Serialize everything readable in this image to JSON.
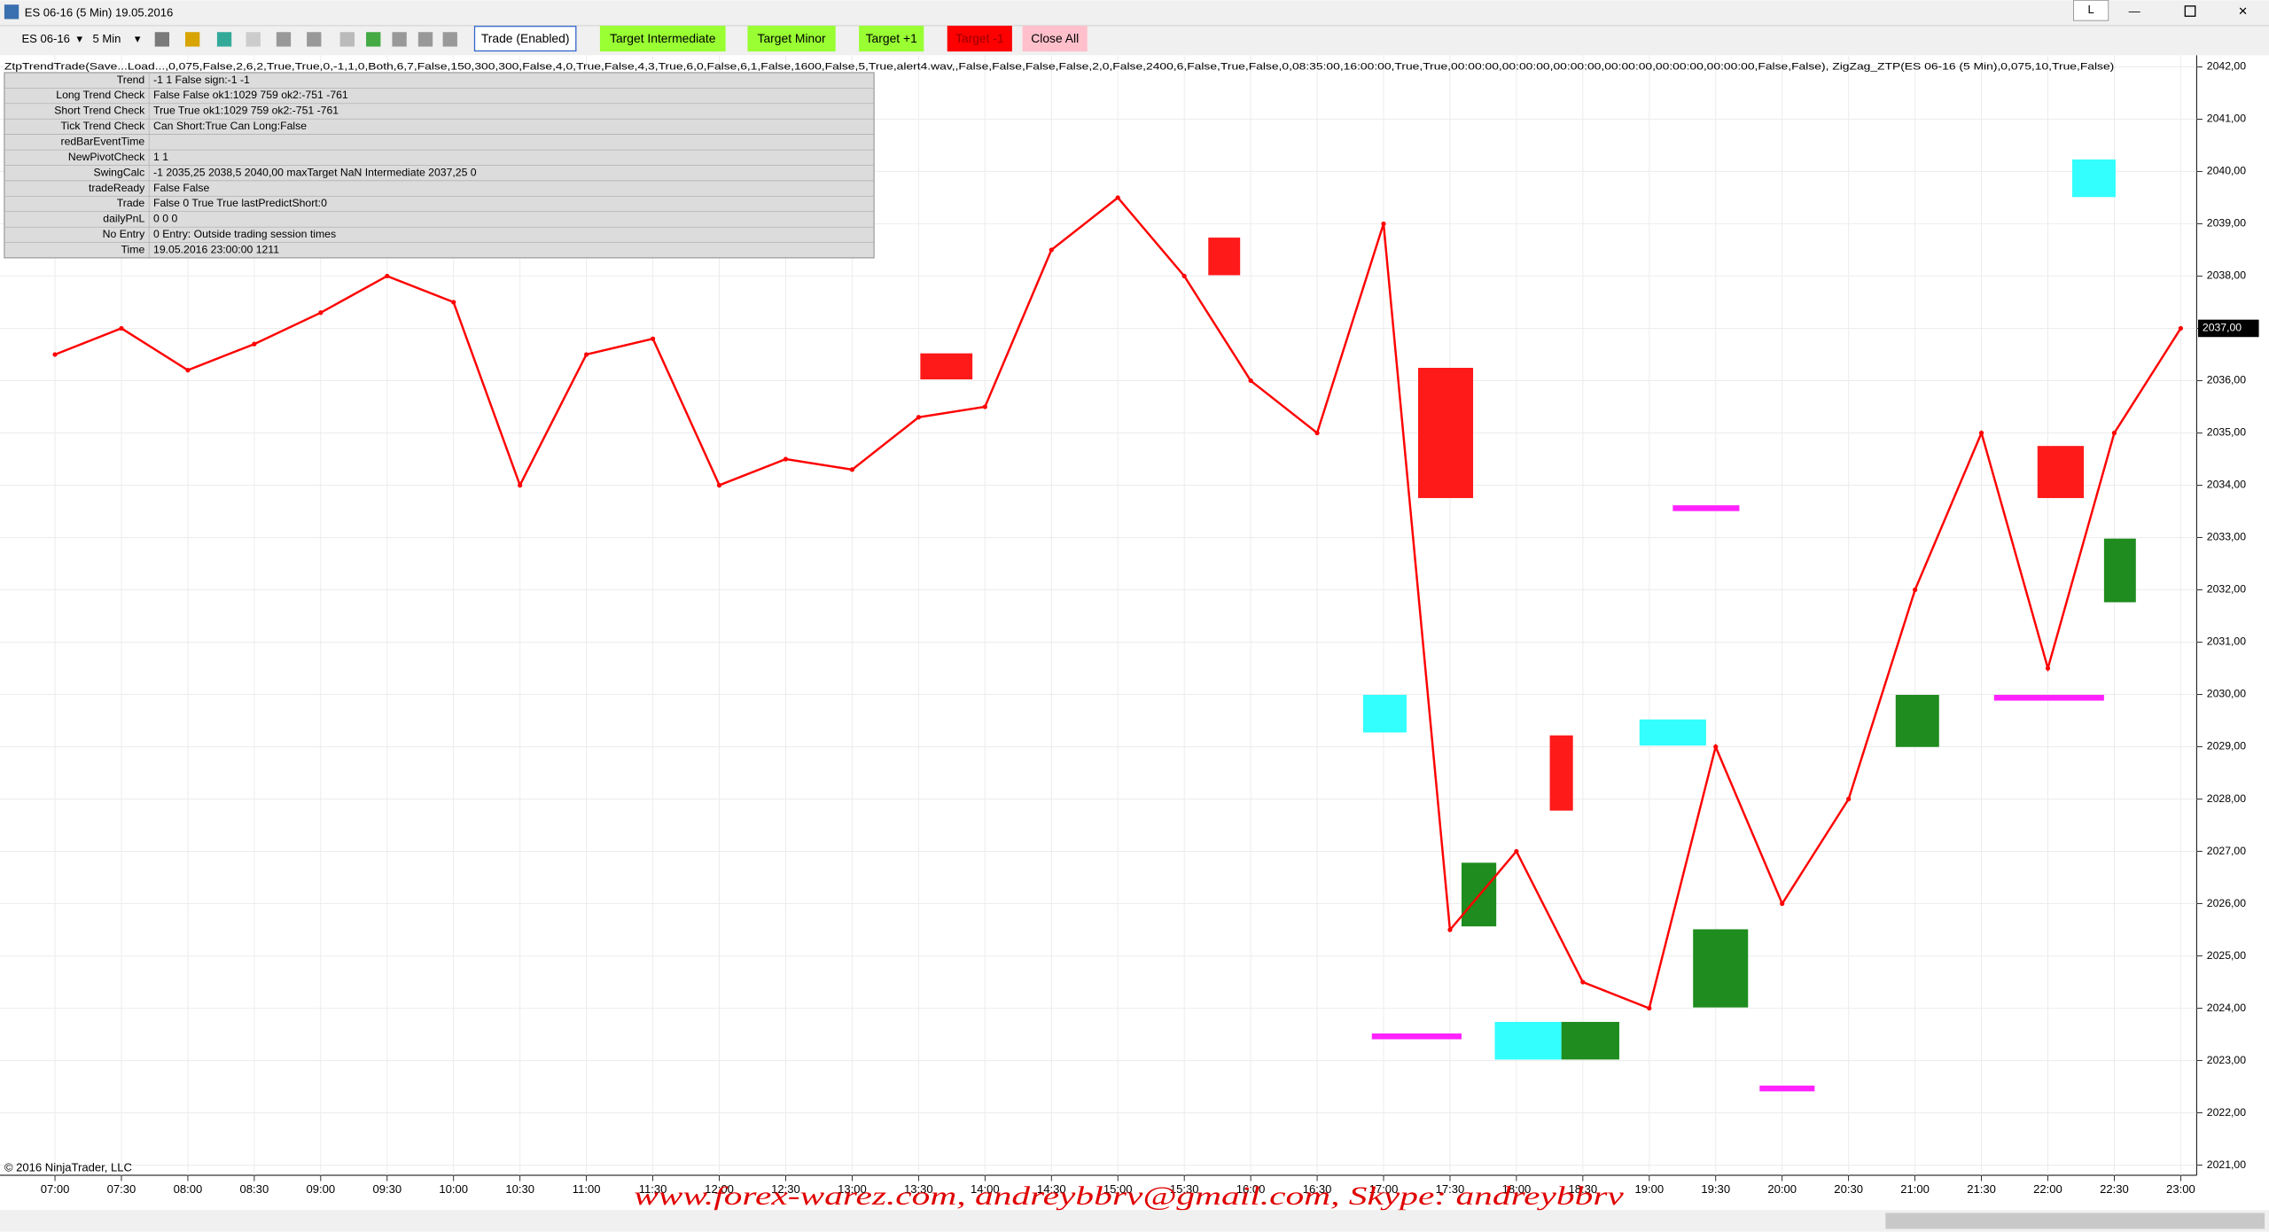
{
  "window": {
    "title": "ES 06-16 (5 Min)  19.05.2016",
    "minimize_label": "L"
  },
  "toolbar": {
    "instrument": "ES 06-16",
    "interval": "5 Min",
    "buttons": [
      "Trade (Enabled)",
      "Target Intermediate",
      "Target Minor",
      "Target +1",
      "Target -1",
      "Close All"
    ]
  },
  "indicator_label": "ZtpTrendTrade(Save...Load...,0,075,False,2,6,2,True,True,0,-1,1,0,Both,6,7,False,150,300,300,False,4,0,True,False,4,3,True,6,0,False,6,1,False,1600,False,5,True,alert4.wav,,False,False,False,False,2,0,False,2400,6,False,True,False,0,08:35:00,16:00:00,True,True,00:00:00,00:00:00,00:00:00,00:00:00,00:00:00,00:00:00,False,False), ZigZag_ZTP(ES 06-16 (5 Min),0,075,10,True,False)",
  "info_table": [
    {
      "label": "Trend",
      "value": "-1 1 False sign:-1 -1"
    },
    {
      "label": "Long Trend Check",
      "value": "False False ok1:1029 759 ok2:-751 -761"
    },
    {
      "label": "Short Trend Check",
      "value": "True True ok1:1029 759 ok2:-751 -761"
    },
    {
      "label": "Tick Trend Check",
      "value": "Can Short:True Can Long:False"
    },
    {
      "label": "redBarEventTime"
    },
    {
      "label": "NewPivotCheck",
      "value": "1 1"
    },
    {
      "label": "SwingCalc",
      "value": "-1 2035,25 2038,5 2040,00 maxTarget NaN Intermediate 2037,25 0"
    },
    {
      "label": "tradeReady",
      "value": "False False"
    },
    {
      "label": "Trade",
      "value": "False 0 True True lastPredictShort:0"
    },
    {
      "label": "dailyPnL",
      "value": "0 0 0"
    },
    {
      "label": "No Entry",
      "value": "0 Entry: Outside trading session times"
    },
    {
      "label": "Time",
      "value": "19.05.2016 23:00:00 1211"
    }
  ],
  "copyright": "© 2016 NinjaTrader, LLC",
  "watermark": "www.forex-warez.com, andreybbrv@gmail.com, Skype: andreybbrv",
  "chart_data": {
    "type": "line",
    "color": "#ff0000",
    "categories": [
      "07:00",
      "07:30",
      "08:00",
      "08:30",
      "09:00",
      "09:30",
      "10:00",
      "10:30",
      "11:00",
      "11:30",
      "12:00",
      "12:30",
      "13:00",
      "13:30",
      "14:00",
      "14:30",
      "15:00",
      "15:30",
      "16:00",
      "16:30",
      "17:00",
      "17:30",
      "18:00",
      "18:30",
      "19:00",
      "19:30",
      "20:00",
      "20:30",
      "21:00",
      "21:30",
      "22:00",
      "22:30",
      "23:00"
    ],
    "values": [
      2036.5,
      2037,
      2036.2,
      2036.7,
      2037.3,
      2038,
      2037.5,
      2034,
      2036.5,
      2036.8,
      2034,
      2034.5,
      2034.3,
      2035.3,
      2035.5,
      2038.5,
      2039.5,
      2038,
      2036,
      2035,
      2039,
      2025.5,
      2027,
      2024.5,
      2024,
      2029,
      2026,
      2028,
      2032,
      2035,
      2030.5,
      2035,
      2037
    ],
    "ylim": [
      2020.8,
      2042.2
    ],
    "yticks": [
      {
        "value": 2021,
        "label": "2021,00"
      },
      {
        "value": 2022,
        "label": "2022,00"
      },
      {
        "value": 2023,
        "label": "2023,00"
      },
      {
        "value": 2024,
        "label": "2024,00"
      },
      {
        "value": 2025,
        "label": "2025,00"
      },
      {
        "value": 2026,
        "label": "2026,00"
      },
      {
        "value": 2027,
        "label": "2027,00"
      },
      {
        "value": 2028,
        "label": "2028,00"
      },
      {
        "value": 2029,
        "label": "2029,00"
      },
      {
        "value": 2030,
        "label": "2030,00"
      },
      {
        "value": 2031,
        "label": "2031,00"
      },
      {
        "value": 2032,
        "label": "2032,00"
      },
      {
        "value": 2033,
        "label": "2033,00"
      },
      {
        "value": 2034,
        "label": "2034,00"
      },
      {
        "value": 2035,
        "label": "2035,00"
      },
      {
        "value": 2036,
        "label": "2036,00"
      },
      {
        "value": 2037,
        "label": "2037,00"
      },
      {
        "value": 2038,
        "label": "2038,00"
      },
      {
        "value": 2039,
        "label": "2039,00"
      },
      {
        "value": 2040,
        "label": "2040,00"
      },
      {
        "value": 2041,
        "label": "2041,00"
      },
      {
        "value": 2042,
        "label": "2042,00"
      }
    ],
    "last_price": {
      "value": 2037,
      "label": "2037,00"
    },
    "grid": true
  }
}
